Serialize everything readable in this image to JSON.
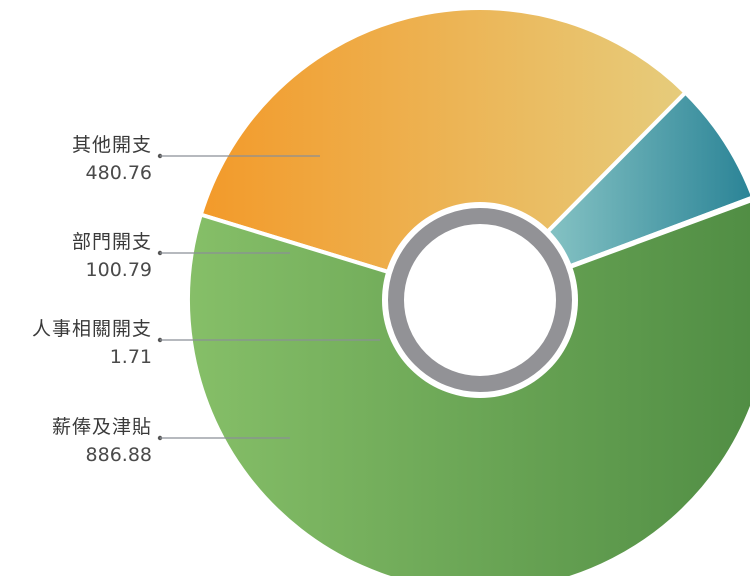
{
  "chart_data": {
    "type": "pie",
    "donut": true,
    "title": "",
    "slices": [
      {
        "label": "其他開支",
        "value": 480.76,
        "display_value": "480.76",
        "color_start": "#f39a2a",
        "color_end": "#e6cc7c"
      },
      {
        "label": "部門開支",
        "value": 100.79,
        "display_value": "100.79",
        "color_start": "#86c3c4",
        "color_end": "#2a8396"
      },
      {
        "label": "人事相關開支",
        "value": 1.71,
        "display_value": "1.71",
        "color_start": "#5aa3c7",
        "color_end": "#5aa3c7"
      },
      {
        "label": "薪俸及津貼",
        "value": 886.88,
        "display_value": "886.88",
        "color_start": "#86bf68",
        "color_end": "#4f8c43"
      }
    ],
    "center_ring_color": "#929296",
    "leader_line_color": "#8a8f96"
  }
}
